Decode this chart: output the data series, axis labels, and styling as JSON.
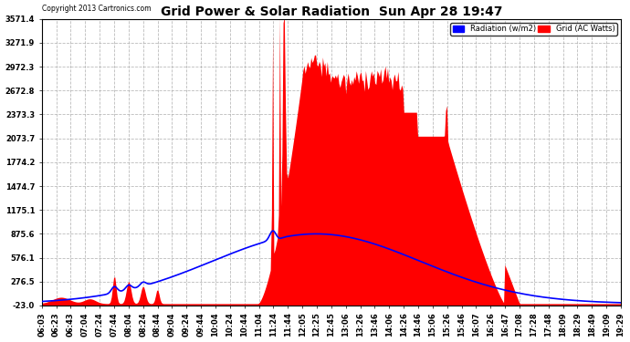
{
  "title": "Grid Power & Solar Radiation  Sun Apr 28 19:47",
  "copyright": "Copyright 2013 Cartronics.com",
  "background_color": "#ffffff",
  "plot_bg_color": "#ffffff",
  "grid_color": "#aaaaaa",
  "yticks": [
    3571.4,
    3271.9,
    2972.3,
    2672.8,
    2373.3,
    2073.7,
    1774.2,
    1474.7,
    1175.1,
    875.6,
    576.1,
    276.5,
    -23.0
  ],
  "ymin": -23.0,
  "ymax": 3571.4,
  "legend_radiation_label": "Radiation (w/m2)",
  "legend_grid_label": "Grid (AC Watts)",
  "radiation_color": "#0000ff",
  "grid_fill_color": "#ff0000",
  "time_labels": [
    "06:03",
    "06:23",
    "06:43",
    "07:04",
    "07:24",
    "07:44",
    "08:04",
    "08:24",
    "08:44",
    "09:04",
    "09:24",
    "09:44",
    "10:04",
    "10:24",
    "10:44",
    "11:04",
    "11:24",
    "11:44",
    "12:05",
    "12:25",
    "12:45",
    "13:06",
    "13:26",
    "13:46",
    "14:06",
    "14:26",
    "14:46",
    "15:06",
    "15:26",
    "15:46",
    "16:07",
    "16:26",
    "16:47",
    "17:08",
    "17:28",
    "17:48",
    "18:09",
    "18:29",
    "18:49",
    "19:09",
    "19:29"
  ]
}
